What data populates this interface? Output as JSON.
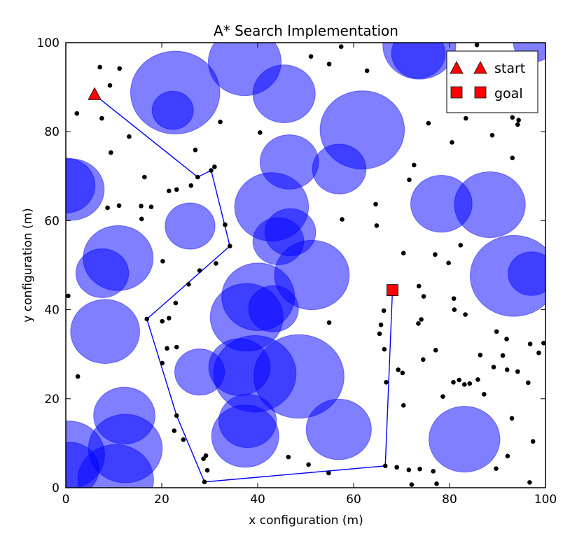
{
  "chart_data": {
    "type": "scatter",
    "title": "A* Search Implementation",
    "xlabel": "x configuration (m)",
    "ylabel": "y configuration (m)",
    "xlim": [
      0,
      100
    ],
    "ylim": [
      0,
      100
    ],
    "xticks": [
      "0",
      "20",
      "40",
      "60",
      "80",
      "100"
    ],
    "yticks": [
      "0",
      "20",
      "40",
      "60",
      "80",
      "100"
    ],
    "grid": false,
    "legend_position": "top-right",
    "colors": {
      "obstacle": "#0000ff",
      "path": "#0000ff",
      "marker": "#ff0000",
      "point": "#000000"
    },
    "legend": [
      {
        "label": "start",
        "marker": "triangle"
      },
      {
        "label": "goal",
        "marker": "square"
      }
    ],
    "start": {
      "x": 6,
      "y": 88.3
    },
    "goal": {
      "x": 68.1,
      "y": 44.4
    },
    "obstacles": [
      {
        "x": 22.8,
        "y": 88.8,
        "r": 9.3
      },
      {
        "x": 22.3,
        "y": 84.8,
        "r": 4.3
      },
      {
        "x": 37.3,
        "y": 95.7,
        "r": 7.6
      },
      {
        "x": 45.5,
        "y": 88.5,
        "r": 6.5
      },
      {
        "x": 61.8,
        "y": 80.4,
        "r": 8.8
      },
      {
        "x": 46.6,
        "y": 73.2,
        "r": 6.1
      },
      {
        "x": 57,
        "y": 71.6,
        "r": 5.6
      },
      {
        "x": 42.9,
        "y": 63.1,
        "r": 7.7
      },
      {
        "x": 46.8,
        "y": 57.4,
        "r": 5.3
      },
      {
        "x": 44.3,
        "y": 55.4,
        "r": 5.3
      },
      {
        "x": 51.3,
        "y": 47.8,
        "r": 7.8
      },
      {
        "x": 73.7,
        "y": 99.4,
        "r": 7.6
      },
      {
        "x": 73.5,
        "y": 97.6,
        "r": 5.6
      },
      {
        "x": 97.6,
        "y": 100,
        "r": 4.3
      },
      {
        "x": 78.3,
        "y": 63.8,
        "r": 6.4
      },
      {
        "x": 88.4,
        "y": 63.6,
        "r": 7.4
      },
      {
        "x": 93.4,
        "y": 47.6,
        "r": 9.1
      },
      {
        "x": 97.1,
        "y": 48.1,
        "r": 4.9
      },
      {
        "x": 1.1,
        "y": 67,
        "r": 6.9
      },
      {
        "x": -0.1,
        "y": 67.9,
        "r": 6.2
      },
      {
        "x": 10.9,
        "y": 51.6,
        "r": 7.3
      },
      {
        "x": 7.6,
        "y": 48.2,
        "r": 5.5
      },
      {
        "x": 25.9,
        "y": 58.8,
        "r": 5.2
      },
      {
        "x": 8.2,
        "y": 35.1,
        "r": 7.2
      },
      {
        "x": 40.1,
        "y": 42.9,
        "r": 7.6
      },
      {
        "x": 37.7,
        "y": 38.3,
        "r": 7.6
      },
      {
        "x": 43.3,
        "y": 40.2,
        "r": 5.2
      },
      {
        "x": 27.9,
        "y": 26,
        "r": 5.2
      },
      {
        "x": 36.2,
        "y": 27.1,
        "r": 6.4
      },
      {
        "x": 39.4,
        "y": 25.6,
        "r": 8.6
      },
      {
        "x": 48.6,
        "y": 25,
        "r": 9.4
      },
      {
        "x": 37.9,
        "y": 15,
        "r": 6
      },
      {
        "x": 37.4,
        "y": 11.6,
        "r": 7
      },
      {
        "x": 56.9,
        "y": 13.1,
        "r": 6.8
      },
      {
        "x": 12.2,
        "y": 16.2,
        "r": 6.4
      },
      {
        "x": 12.4,
        "y": 8.8,
        "r": 7.7
      },
      {
        "x": 10.4,
        "y": 1.8,
        "r": 7.9
      },
      {
        "x": 0.5,
        "y": 7.4,
        "r": 7.6
      },
      {
        "x": 0.9,
        "y": 4.2,
        "r": 6
      },
      {
        "x": 83.1,
        "y": 10.9,
        "r": 7.4
      }
    ],
    "path": [
      {
        "x": 6,
        "y": 88.3
      },
      {
        "x": 27.5,
        "y": 69.8
      },
      {
        "x": 30.3,
        "y": 71.3
      },
      {
        "x": 34.2,
        "y": 54.3
      },
      {
        "x": 16.9,
        "y": 37.9
      },
      {
        "x": 23.1,
        "y": 16.2
      },
      {
        "x": 28.9,
        "y": 1.3
      },
      {
        "x": 66.6,
        "y": 4.9
      },
      {
        "x": 68.1,
        "y": 44.4
      }
    ],
    "points": [
      [
        7.1,
        94.5
      ],
      [
        11.2,
        94.2
      ],
      [
        2.3,
        84.1
      ],
      [
        7.5,
        83
      ],
      [
        9.2,
        90.4
      ],
      [
        13.2,
        78.9
      ],
      [
        9.4,
        75.3
      ],
      [
        8.7,
        62.9
      ],
      [
        11.1,
        63.4
      ],
      [
        15.7,
        63.3
      ],
      [
        16.4,
        69.8
      ],
      [
        15.8,
        60.4
      ],
      [
        17.8,
        63.1
      ],
      [
        21.5,
        66.7
      ],
      [
        23.1,
        67
      ],
      [
        27,
        75.9
      ],
      [
        26.1,
        67.9
      ],
      [
        31,
        72.1
      ],
      [
        32.2,
        82.2
      ],
      [
        20.2,
        50.9
      ],
      [
        27.9,
        48.8
      ],
      [
        31.3,
        50.4
      ],
      [
        33.2,
        59.1
      ],
      [
        25.6,
        45.7
      ],
      [
        22.9,
        41.5
      ],
      [
        21.5,
        38.1
      ],
      [
        20.1,
        37.4
      ],
      [
        21.1,
        31.3
      ],
      [
        23.1,
        31.6
      ],
      [
        20.1,
        28
      ],
      [
        22.6,
        12.8
      ],
      [
        24.5,
        10.8
      ],
      [
        28.7,
        6.5
      ],
      [
        29.2,
        7.2
      ],
      [
        29.5,
        3.9
      ],
      [
        2.5,
        25
      ],
      [
        0.5,
        43.1
      ],
      [
        40.5,
        79.8
      ],
      [
        51.1,
        96.9
      ],
      [
        54.9,
        95.2
      ],
      [
        57.4,
        99.1
      ],
      [
        62.8,
        93.7
      ],
      [
        64.6,
        63.7
      ],
      [
        64.8,
        58.9
      ],
      [
        57.6,
        60.3
      ],
      [
        54.9,
        37.1
      ],
      [
        46.4,
        6.9
      ],
      [
        50.6,
        5.2
      ],
      [
        54.8,
        3.3
      ],
      [
        66.3,
        39.8
      ],
      [
        65.7,
        36.6
      ],
      [
        65.4,
        34.6
      ],
      [
        66.4,
        31.1
      ],
      [
        69.3,
        26.5
      ],
      [
        70.2,
        25.8
      ],
      [
        70.4,
        18.5
      ],
      [
        66.8,
        23.7
      ],
      [
        72.6,
        72.5
      ],
      [
        71.6,
        69.2
      ],
      [
        70.4,
        52.7
      ],
      [
        73.6,
        45.3
      ],
      [
        74.6,
        43
      ],
      [
        77,
        52.4
      ],
      [
        73.5,
        36.9
      ],
      [
        74.1,
        37.8
      ],
      [
        77.1,
        30.9
      ],
      [
        74.5,
        28.8
      ],
      [
        75.6,
        81.9
      ],
      [
        80.5,
        77.6
      ],
      [
        82.3,
        54.5
      ],
      [
        83.4,
        83
      ],
      [
        79.8,
        50.5
      ],
      [
        80.9,
        42.5
      ],
      [
        81,
        40
      ],
      [
        83.3,
        38.9
      ],
      [
        85.7,
        99.5
      ],
      [
        88.9,
        79.2
      ],
      [
        93.1,
        74.1
      ],
      [
        93.1,
        83.2
      ],
      [
        94.2,
        81.6
      ],
      [
        94.4,
        82.6
      ],
      [
        86.4,
        29.8
      ],
      [
        89.8,
        35.1
      ],
      [
        91.9,
        33.4
      ],
      [
        91.1,
        29.7
      ],
      [
        89.2,
        27.1
      ],
      [
        92,
        26.5
      ],
      [
        94.2,
        26.1
      ],
      [
        96.4,
        23.6
      ],
      [
        96.8,
        32.3
      ],
      [
        98.6,
        30.3
      ],
      [
        99.6,
        32.5
      ],
      [
        80.8,
        23.7
      ],
      [
        82,
        24.2
      ],
      [
        83.1,
        23.2
      ],
      [
        84.2,
        23.4
      ],
      [
        85.9,
        24.3
      ],
      [
        87.2,
        21
      ],
      [
        78.6,
        20.5
      ],
      [
        93,
        15.6
      ],
      [
        92.1,
        7.1
      ],
      [
        97.4,
        10.4
      ],
      [
        89.7,
        4.3
      ],
      [
        96.7,
        1.2
      ],
      [
        76.6,
        3.7
      ],
      [
        77.3,
        0.9
      ],
      [
        73.8,
        4.2
      ],
      [
        71.5,
        4
      ],
      [
        69,
        4.6
      ],
      [
        72.1,
        0.7
      ]
    ]
  }
}
